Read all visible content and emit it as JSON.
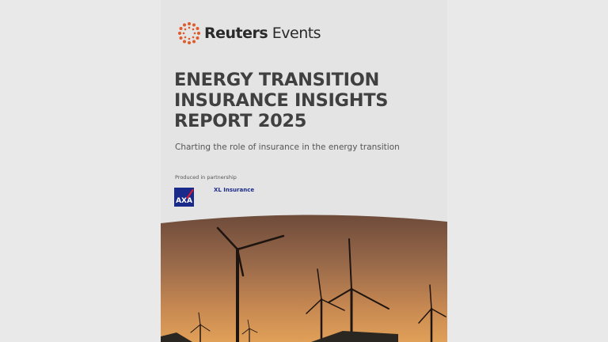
{
  "brand": {
    "name_bold": "Reuters",
    "name_light": "Events",
    "color": "#e05a2a"
  },
  "title_lines": [
    "ENERGY TRANSITION",
    "INSURANCE INSIGHTS",
    "REPORT 2025"
  ],
  "subtitle": "Charting the role of insurance in the energy transition",
  "partnership_label": "Produced in partnership",
  "partners": {
    "axa": "AXA",
    "xl": "XL Insurance"
  },
  "cover_image": "wind-turbines-sunset"
}
